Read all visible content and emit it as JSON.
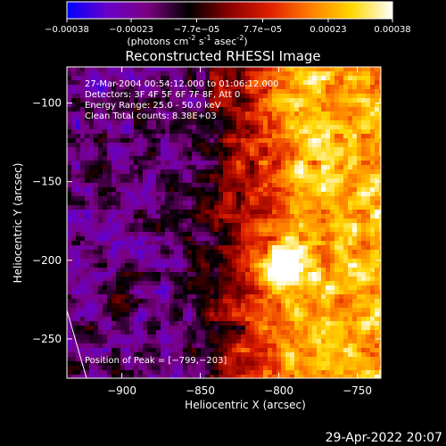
{
  "colorbar": {
    "ticks": [
      "-0.00038",
      "-0.00023",
      "-7.7e-05",
      "7.7e-05",
      "0.00023",
      "0.00038"
    ],
    "unit_prefix": "(photons cm",
    "unit_exp1": "-2",
    "unit_mid": " s",
    "unit_exp2": "-1",
    "unit_mid2": " asec",
    "unit_exp3": "-2",
    "unit_suffix": ")",
    "colors": [
      "#0000ff",
      "#6a00c8",
      "#7a0080",
      "#000000",
      "#8c0000",
      "#e02000",
      "#ff7f00",
      "#ffd700",
      "#ffffff"
    ]
  },
  "chart_data": {
    "type": "heatmap",
    "title": "Reconstructed RHESSI Image",
    "xlabel": "Heliocentric X (arcsec)",
    "ylabel": "Heliocentric Y (arcsec)",
    "xlim": [
      -935,
      -735
    ],
    "ylim": [
      -275,
      -77
    ],
    "xticks": [
      -900,
      -850,
      -800,
      -750
    ],
    "yticks": [
      -250,
      -200,
      -150,
      -100
    ],
    "xtick_labels": [
      "−900",
      "−850",
      "−800",
      "−750"
    ],
    "ytick_labels": [
      "−250",
      "−200",
      "−150",
      "−100"
    ],
    "annotations": [
      "27-Mar-2004 00:54:12.000 to 01:06:12.000",
      "Detectors: 3F 4F 5F 6F 7F 8F, Att 0",
      "Energy Range: 25.0 - 50.0 keV",
      "Clean     Total counts: 8.38E+03"
    ],
    "peak_label": "Position of Peak = [−799,−203]",
    "peak": [
      -799,
      -203
    ],
    "value_range": [
      -0.00038,
      0.00038
    ]
  },
  "timestamp": "29-Apr-2022 20:07"
}
